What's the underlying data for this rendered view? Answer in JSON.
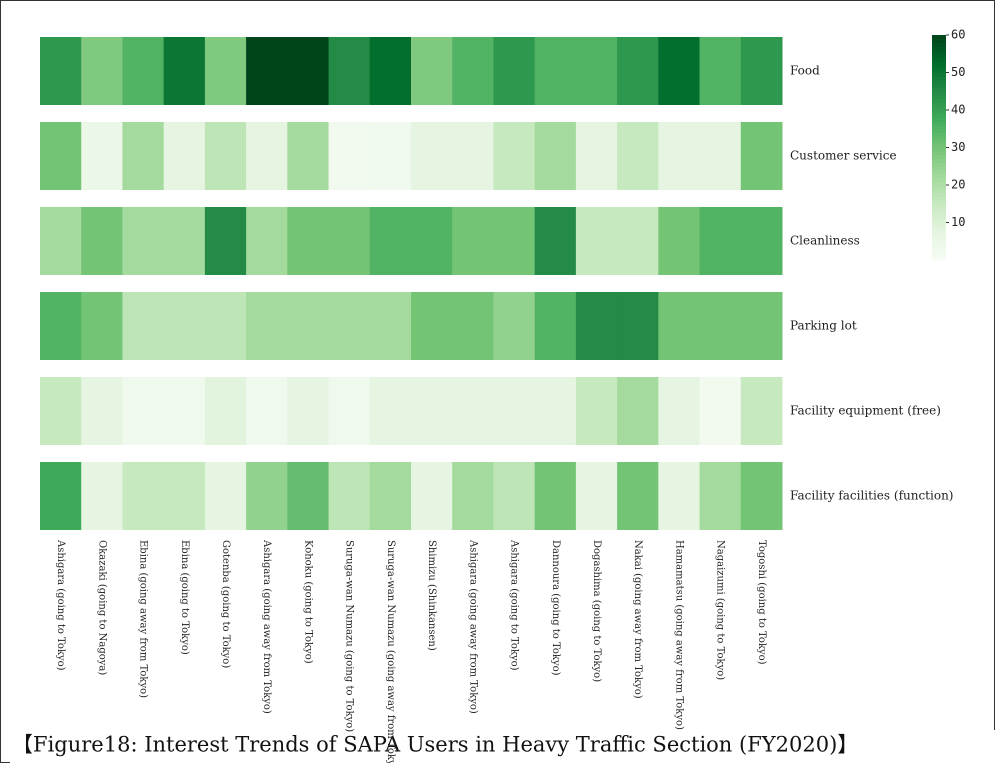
{
  "chart_data": {
    "type": "heatmap",
    "caption": "【Figure18: Interest Trends of SAPA Users in Heavy Traffic Section (FY2020)】",
    "x": [
      "Ashigara (going to Tokyo)",
      "Okazaki (going to Nagoya)",
      "Ebina (going away from Tokyo)",
      "Ebina (going to Tokyo)",
      "Gotenba (going to Tokyo)",
      "Ashigara (going away from Tokyo)",
      "Kohoku (going to Tokyo)",
      "Suruga-wan Numazu (going to Tokyo)",
      "Suruga-wan Numazu (going away from Tokyo)",
      "Shimizu (Shinkansen)",
      "Ashigara (going away from Tokyo)",
      "Ashigara (going to Tokyo)",
      "Dannoura (going to Tokyo)",
      "Dogashima (going to Tokyo)",
      "Nakai (going away from Tokyo)",
      "Hamamatsu (going away from Tokyo)",
      "Nagaizumi (going to Tokyo)",
      "Togoshi (going to Tokyo)"
    ],
    "y": [
      "Food",
      "Customer service",
      "Cleanliness",
      "Parking lot",
      "Facility equipment (free)",
      "Facility facilities (function)"
    ],
    "z": [
      [
        42,
        28,
        35,
        50,
        28,
        60,
        60,
        45,
        52,
        28,
        35,
        42,
        35,
        35,
        42,
        52,
        35,
        42
      ],
      [
        30,
        5,
        22,
        7,
        17,
        7,
        22,
        2,
        3,
        7,
        7,
        15,
        22,
        7,
        15,
        7,
        7,
        30
      ],
      [
        22,
        30,
        22,
        22,
        45,
        22,
        30,
        30,
        35,
        35,
        30,
        30,
        45,
        15,
        15,
        30,
        35,
        35
      ],
      [
        35,
        30,
        17,
        17,
        17,
        22,
        22,
        22,
        22,
        30,
        30,
        25,
        35,
        45,
        45,
        30,
        30,
        30
      ],
      [
        15,
        7,
        3,
        3,
        8,
        3,
        7,
        3,
        7,
        7,
        7,
        7,
        7,
        15,
        22,
        7,
        2,
        15
      ],
      [
        38,
        7,
        15,
        15,
        7,
        25,
        32,
        17,
        22,
        7,
        22,
        17,
        30,
        7,
        30,
        7,
        22,
        30
      ]
    ],
    "zlim": [
      0,
      60
    ],
    "zticks": [
      10,
      20,
      30,
      40,
      50,
      60
    ],
    "colors": [
      "#f7fcf5",
      "#e5f5e0",
      "#c7e9c0",
      "#a1d99b",
      "#74c476",
      "#41ab5d",
      "#238b45",
      "#006d2c",
      "#00441b"
    ]
  }
}
